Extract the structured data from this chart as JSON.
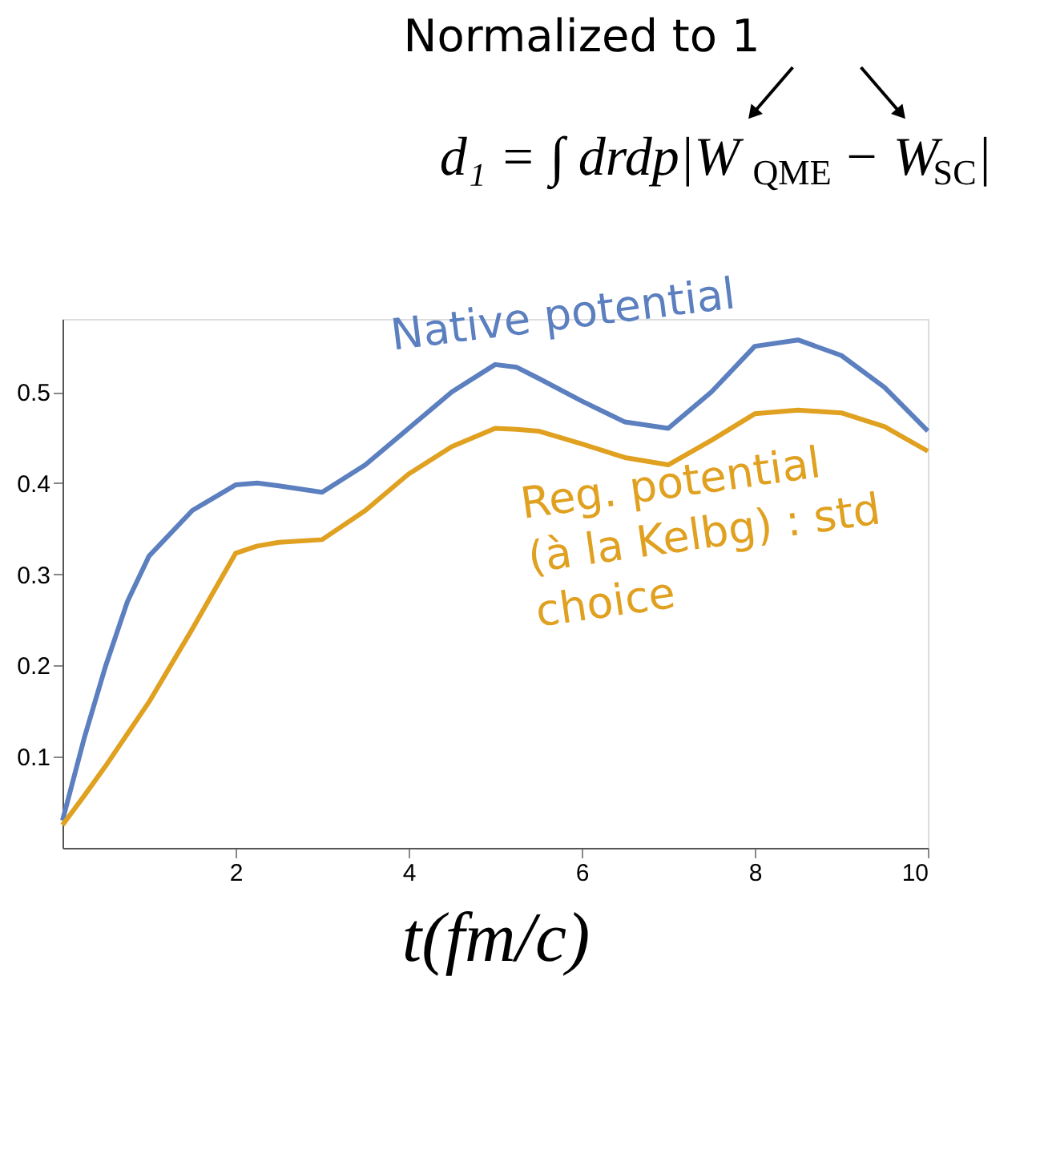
{
  "chart_data": {
    "type": "line",
    "title": "d₁ = ∫ drdp|W$_{QME}$ − W$_{SC}$|",
    "annotations": [
      "Normalized to 1"
    ],
    "xlabel": "t(fm/c)",
    "x": [
      0,
      0.25,
      0.5,
      0.75,
      1,
      1.5,
      2,
      2.25,
      2.5,
      3,
      3.5,
      4,
      4.5,
      5,
      5.25,
      5.5,
      6,
      6.5,
      7,
      7.5,
      8,
      8.5,
      9,
      9.5,
      10
    ],
    "series": [
      {
        "name": "Native potential",
        "color": "#5b7fbf",
        "values": [
          0.03,
          0.12,
          0.2,
          0.27,
          0.32,
          0.37,
          0.398,
          0.4,
          0.397,
          0.39,
          0.42,
          0.46,
          0.5,
          0.53,
          0.527,
          0.515,
          0.49,
          0.467,
          0.46,
          0.5,
          0.55,
          0.557,
          0.54,
          0.505,
          0.457
        ]
      },
      {
        "name": "Reg. potential\n(à la Kelbg) : std\nchoice",
        "color": "#e0a020",
        "values": [
          0.025,
          0.057,
          0.09,
          0.125,
          0.16,
          0.24,
          0.323,
          0.331,
          0.335,
          0.338,
          0.37,
          0.41,
          0.44,
          0.46,
          0.459,
          0.457,
          0.443,
          0.428,
          0.42,
          0.447,
          0.476,
          0.48,
          0.477,
          0.462,
          0.435
        ]
      }
    ],
    "xlim": [
      0,
      10
    ],
    "xticks": [
      2,
      4,
      6,
      8,
      10
    ],
    "ylim": [
      0,
      0.58
    ],
    "yticks": [
      0.1,
      0.2,
      0.3,
      0.4,
      0.5
    ],
    "grid": false,
    "legend": false,
    "marker": "none",
    "line_style": "solid"
  }
}
